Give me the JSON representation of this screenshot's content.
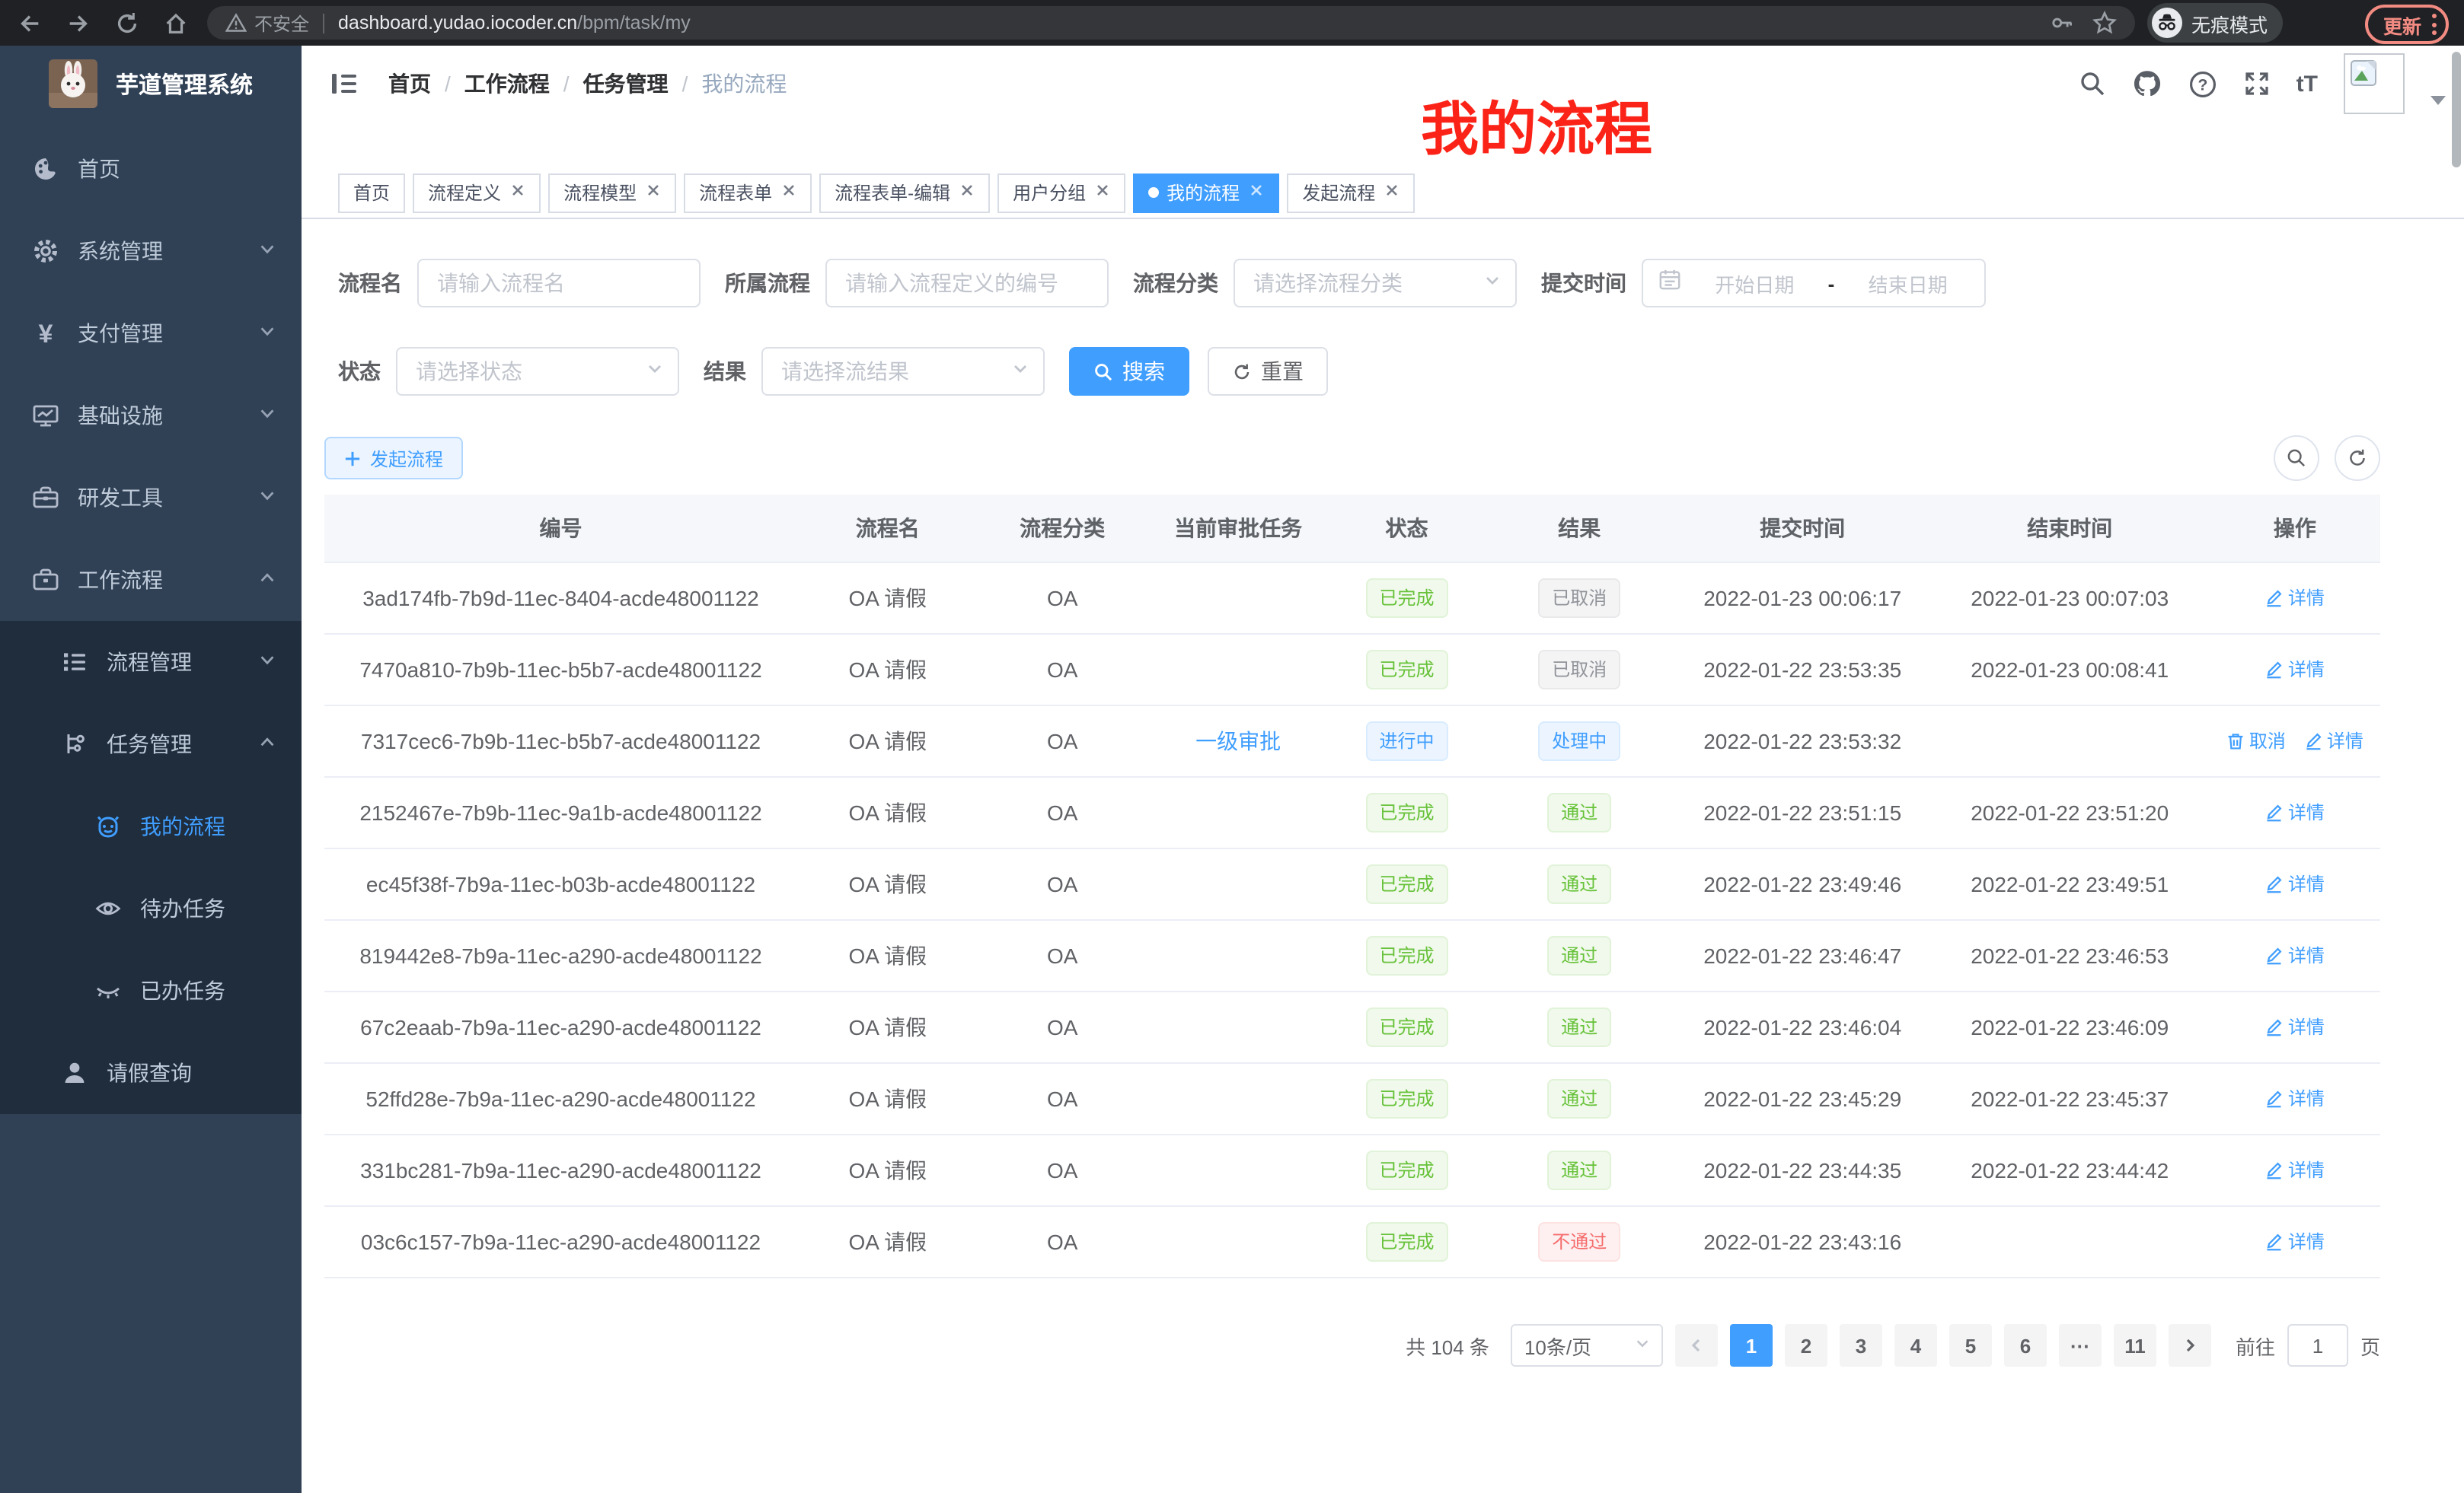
{
  "browser": {
    "security_label": "不安全",
    "url_host": "dashboard.yudao.iocoder.cn",
    "url_path": "/bpm/task/my",
    "incognito_label": "无痕模式",
    "update_label": "更新"
  },
  "sidebar": {
    "app_title": "芋道管理系统",
    "menu": [
      {
        "label": "首页",
        "icon": "dashboard-icon",
        "level": 1,
        "sub": false,
        "chevron": "",
        "active": false
      },
      {
        "label": "系统管理",
        "icon": "gear-icon",
        "level": 1,
        "sub": false,
        "chevron": "down",
        "active": false
      },
      {
        "label": "支付管理",
        "icon": "yen-icon",
        "level": 1,
        "sub": false,
        "chevron": "down",
        "active": false
      },
      {
        "label": "基础设施",
        "icon": "monitor-icon",
        "level": 1,
        "sub": false,
        "chevron": "down",
        "active": false
      },
      {
        "label": "研发工具",
        "icon": "toolbox-icon",
        "level": 1,
        "sub": false,
        "chevron": "down",
        "active": false
      },
      {
        "label": "工作流程",
        "icon": "briefcase-icon",
        "level": 1,
        "sub": false,
        "chevron": "up",
        "active": false
      },
      {
        "label": "流程管理",
        "icon": "tree-list-icon",
        "level": 2,
        "sub": true,
        "chevron": "down",
        "active": false
      },
      {
        "label": "任务管理",
        "icon": "branch-icon",
        "level": 2,
        "sub": true,
        "chevron": "up",
        "active": false
      },
      {
        "label": "我的流程",
        "icon": "robot-icon",
        "level": 3,
        "sub": true,
        "chevron": "",
        "active": true
      },
      {
        "label": "待办任务",
        "icon": "eye-icon",
        "level": 3,
        "sub": true,
        "chevron": "",
        "active": false
      },
      {
        "label": "已办任务",
        "icon": "eye-closed-icon",
        "level": 3,
        "sub": true,
        "chevron": "",
        "active": false
      },
      {
        "label": "请假查询",
        "icon": "user-icon",
        "level": 2,
        "sub": true,
        "chevron": "",
        "active": false
      }
    ]
  },
  "navbar": {
    "breadcrumb": [
      "首页",
      "工作流程",
      "任务管理",
      "我的流程"
    ]
  },
  "annotation": {
    "text": "我的流程",
    "color": "#fb2317"
  },
  "tags_view": [
    {
      "label": "首页",
      "closable": false,
      "active": false
    },
    {
      "label": "流程定义",
      "closable": true,
      "active": false
    },
    {
      "label": "流程模型",
      "closable": true,
      "active": false
    },
    {
      "label": "流程表单",
      "closable": true,
      "active": false
    },
    {
      "label": "流程表单-编辑",
      "closable": true,
      "active": false
    },
    {
      "label": "用户分组",
      "closable": true,
      "active": false
    },
    {
      "label": "我的流程",
      "closable": true,
      "active": true
    },
    {
      "label": "发起流程",
      "closable": true,
      "active": false
    }
  ],
  "filters": {
    "process_name": {
      "label": "流程名",
      "placeholder": "请输入流程名"
    },
    "parent_process": {
      "label": "所属流程",
      "placeholder": "请输入流程定义的编号"
    },
    "category": {
      "label": "流程分类",
      "placeholder": "请选择流程分类"
    },
    "submit_time": {
      "label": "提交时间",
      "start_placeholder": "开始日期",
      "separator": "-",
      "end_placeholder": "结束日期"
    },
    "status": {
      "label": "状态",
      "placeholder": "请选择状态"
    },
    "result": {
      "label": "结果",
      "placeholder": "请选择流结果"
    },
    "search_label": "搜索",
    "reset_label": "重置"
  },
  "toolbar": {
    "start_process_label": "发起流程"
  },
  "table": {
    "columns": [
      "编号",
      "流程名",
      "流程分类",
      "当前审批任务",
      "状态",
      "结果",
      "提交时间",
      "结束时间",
      "操作"
    ],
    "rows": [
      {
        "id": "3ad174fb-7b9d-11ec-8404-acde48001122",
        "name": "OA 请假",
        "category": "OA",
        "task": "",
        "status": "已完成",
        "status_type": "success",
        "result": "已取消",
        "result_type": "info",
        "submit_time": "2022-01-23 00:06:17",
        "end_time": "2022-01-23 00:07:03",
        "actions": [
          "详情"
        ]
      },
      {
        "id": "7470a810-7b9b-11ec-b5b7-acde48001122",
        "name": "OA 请假",
        "category": "OA",
        "task": "",
        "status": "已完成",
        "status_type": "success",
        "result": "已取消",
        "result_type": "info",
        "submit_time": "2022-01-22 23:53:35",
        "end_time": "2022-01-23 00:08:41",
        "actions": [
          "详情"
        ]
      },
      {
        "id": "7317cec6-7b9b-11ec-b5b7-acde48001122",
        "name": "OA 请假",
        "category": "OA",
        "task": "一级审批",
        "status": "进行中",
        "status_type": "primary",
        "result": "处理中",
        "result_type": "primary",
        "submit_time": "2022-01-22 23:53:32",
        "end_time": "",
        "actions": [
          "取消",
          "详情"
        ]
      },
      {
        "id": "2152467e-7b9b-11ec-9a1b-acde48001122",
        "name": "OA 请假",
        "category": "OA",
        "task": "",
        "status": "已完成",
        "status_type": "success",
        "result": "通过",
        "result_type": "success",
        "submit_time": "2022-01-22 23:51:15",
        "end_time": "2022-01-22 23:51:20",
        "actions": [
          "详情"
        ]
      },
      {
        "id": "ec45f38f-7b9a-11ec-b03b-acde48001122",
        "name": "OA 请假",
        "category": "OA",
        "task": "",
        "status": "已完成",
        "status_type": "success",
        "result": "通过",
        "result_type": "success",
        "submit_time": "2022-01-22 23:49:46",
        "end_time": "2022-01-22 23:49:51",
        "actions": [
          "详情"
        ]
      },
      {
        "id": "819442e8-7b9a-11ec-a290-acde48001122",
        "name": "OA 请假",
        "category": "OA",
        "task": "",
        "status": "已完成",
        "status_type": "success",
        "result": "通过",
        "result_type": "success",
        "submit_time": "2022-01-22 23:46:47",
        "end_time": "2022-01-22 23:46:53",
        "actions": [
          "详情"
        ]
      },
      {
        "id": "67c2eaab-7b9a-11ec-a290-acde48001122",
        "name": "OA 请假",
        "category": "OA",
        "task": "",
        "status": "已完成",
        "status_type": "success",
        "result": "通过",
        "result_type": "success",
        "submit_time": "2022-01-22 23:46:04",
        "end_time": "2022-01-22 23:46:09",
        "actions": [
          "详情"
        ]
      },
      {
        "id": "52ffd28e-7b9a-11ec-a290-acde48001122",
        "name": "OA 请假",
        "category": "OA",
        "task": "",
        "status": "已完成",
        "status_type": "success",
        "result": "通过",
        "result_type": "success",
        "submit_time": "2022-01-22 23:45:29",
        "end_time": "2022-01-22 23:45:37",
        "actions": [
          "详情"
        ]
      },
      {
        "id": "331bc281-7b9a-11ec-a290-acde48001122",
        "name": "OA 请假",
        "category": "OA",
        "task": "",
        "status": "已完成",
        "status_type": "success",
        "result": "通过",
        "result_type": "success",
        "submit_time": "2022-01-22 23:44:35",
        "end_time": "2022-01-22 23:44:42",
        "actions": [
          "详情"
        ]
      },
      {
        "id": "03c6c157-7b9a-11ec-a290-acde48001122",
        "name": "OA 请假",
        "category": "OA",
        "task": "",
        "status": "已完成",
        "status_type": "success",
        "result": "不通过",
        "result_type": "danger",
        "submit_time": "2022-01-22 23:43:16",
        "end_time": "",
        "actions": [
          "详情"
        ]
      }
    ]
  },
  "pagination": {
    "total_text": "共 104 条",
    "page_size": "10条/页",
    "pages": [
      "1",
      "2",
      "3",
      "4",
      "5",
      "6",
      "···",
      "11"
    ],
    "active_page": "1",
    "goto_label": "前往",
    "goto_value": "1",
    "goto_suffix": "页"
  },
  "colors": {
    "accent": "#409eff",
    "success": "#67c23a",
    "danger": "#f56c6c",
    "info": "#909399",
    "sidebar_bg": "#304156",
    "submenu_bg": "#1f2d3d"
  }
}
